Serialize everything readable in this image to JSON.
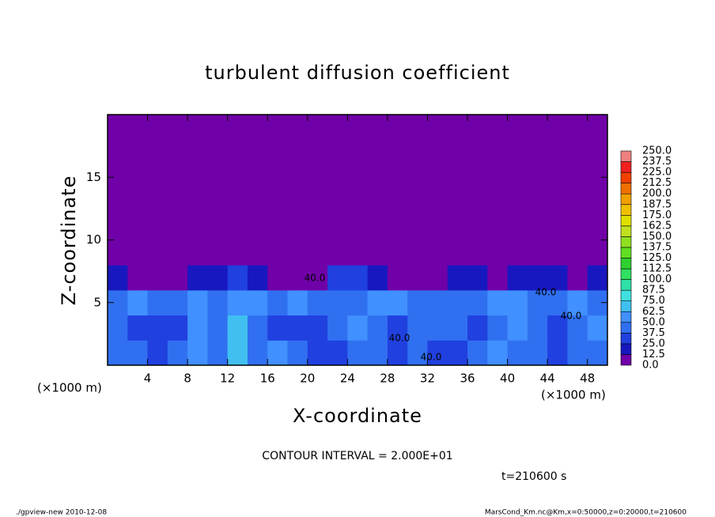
{
  "chart_data": {
    "type": "contour",
    "title": "turbulent diffusion coefficient",
    "x_label": "X-coordinate",
    "y_label": "Z-coordinate",
    "x_unit": "(×1000 m)",
    "y_unit": "(×1000 m)",
    "contour_interval": "CONTOUR INTERVAL = 2.000E+01",
    "time_label": "t=210600 s",
    "footer_left": "./gpview-new  2010-12-08",
    "footer_right": "MarsCond_Km.nc@Km,x=0:50000,z=0:20000,t=210600",
    "contour_labels": [
      "40.0",
      "40.0",
      "40.0",
      "40.0",
      "40.0"
    ],
    "xlim": [
      0,
      50
    ],
    "ylim": [
      0,
      20
    ],
    "xticks": [
      4,
      8,
      12,
      16,
      20,
      24,
      28,
      32,
      36,
      40,
      44,
      48
    ],
    "yticks": [
      5,
      10,
      15
    ],
    "x": [
      1,
      3,
      5,
      7,
      9,
      11,
      13,
      15,
      17,
      19,
      21,
      23,
      25,
      27,
      29,
      31,
      33,
      35,
      37,
      39,
      41,
      43,
      45,
      47,
      49
    ],
    "y": [
      1,
      3,
      5,
      7,
      9,
      11,
      13,
      15,
      17,
      19
    ],
    "z": [
      [
        45,
        40,
        35,
        40,
        55,
        45,
        70,
        40,
        55,
        40,
        35,
        30,
        45,
        40,
        35,
        40,
        30,
        35,
        40,
        50,
        45,
        40,
        35,
        40,
        45
      ],
      [
        40,
        35,
        30,
        35,
        60,
        40,
        65,
        45,
        35,
        30,
        35,
        45,
        50,
        40,
        35,
        45,
        40,
        45,
        35,
        40,
        50,
        45,
        35,
        40,
        50
      ],
      [
        45,
        50,
        40,
        45,
        55,
        45,
        60,
        50,
        45,
        50,
        40,
        45,
        45,
        50,
        55,
        40,
        45,
        40,
        45,
        50,
        55,
        45,
        45,
        50,
        45
      ],
      [
        20,
        5,
        0,
        10,
        20,
        20,
        30,
        20,
        0,
        10,
        10,
        25,
        25,
        20,
        10,
        0,
        5,
        20,
        20,
        10,
        15,
        20,
        15,
        10,
        20
      ],
      [
        0,
        0,
        0,
        0,
        0,
        0,
        0,
        0,
        0,
        0,
        0,
        0,
        0,
        0,
        0,
        0,
        0,
        0,
        0,
        0,
        0,
        0,
        0,
        0,
        0
      ],
      [
        0,
        0,
        0,
        0,
        0,
        0,
        0,
        0,
        0,
        0,
        0,
        0,
        0,
        0,
        0,
        0,
        0,
        0,
        0,
        0,
        0,
        0,
        0,
        0,
        0
      ],
      [
        0,
        0,
        0,
        0,
        0,
        0,
        0,
        0,
        0,
        0,
        0,
        0,
        0,
        0,
        0,
        0,
        0,
        0,
        0,
        0,
        0,
        0,
        0,
        0,
        0
      ],
      [
        0,
        0,
        0,
        0,
        0,
        0,
        0,
        0,
        0,
        0,
        0,
        0,
        0,
        0,
        0,
        0,
        0,
        0,
        0,
        0,
        0,
        0,
        0,
        0,
        0
      ],
      [
        0,
        0,
        0,
        0,
        0,
        0,
        0,
        0,
        0,
        0,
        0,
        0,
        0,
        0,
        0,
        0,
        0,
        0,
        0,
        0,
        0,
        0,
        0,
        0,
        0
      ],
      [
        0,
        0,
        0,
        0,
        0,
        0,
        0,
        0,
        0,
        0,
        0,
        0,
        0,
        0,
        0,
        0,
        0,
        0,
        0,
        0,
        0,
        0,
        0,
        0,
        0
      ]
    ],
    "colorbar": {
      "ticks": [
        {
          "value": 0,
          "label": "0.0"
        },
        12.5,
        {
          "value": 25,
          "label": "25.0"
        },
        37.5,
        {
          "value": 50,
          "label": "50.0"
        },
        62.5,
        {
          "value": 75,
          "label": "75.0"
        },
        87.5,
        {
          "value": 100,
          "label": "100.0"
        },
        112.5,
        {
          "value": 125,
          "label": "125.0"
        },
        137.5,
        {
          "value": 150,
          "label": "150.0"
        },
        162.5,
        {
          "value": 175,
          "label": "175.0"
        },
        187.5,
        {
          "value": 200,
          "label": "200.0"
        },
        212.5,
        {
          "value": 225,
          "label": "225.0"
        },
        237.5,
        {
          "value": 250,
          "label": "250.0"
        }
      ],
      "colors": [
        "#7000a8",
        "#1818c0",
        "#2040e0",
        "#3070f0",
        "#4090ff",
        "#40c0f0",
        "#40e0e0",
        "#30e0a8",
        "#30e060",
        "#30d030",
        "#60e020",
        "#90e020",
        "#c0e020",
        "#e0e000",
        "#f0c000",
        "#f0a000",
        "#f07000",
        "#f04000",
        "#f02020",
        "#f08080"
      ]
    }
  }
}
